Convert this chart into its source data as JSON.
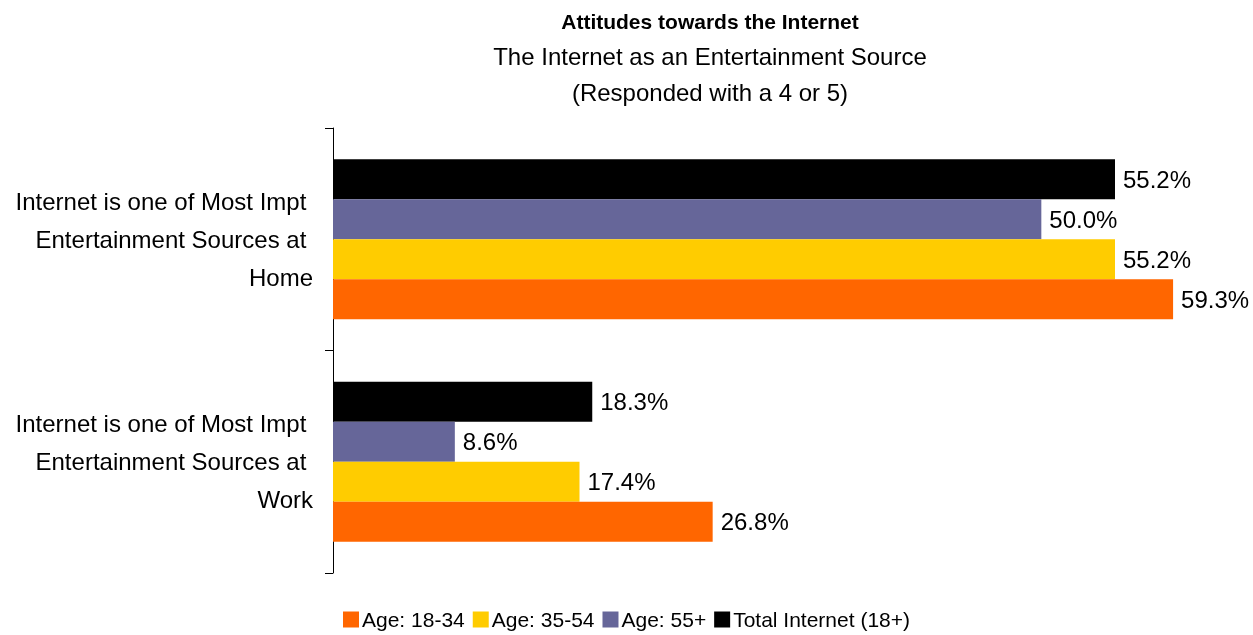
{
  "chart_data": {
    "type": "bar",
    "orientation": "horizontal",
    "title": "Attitudes towards the Internet",
    "subtitle": "The Internet as an Entertainment Source\n(Responded with a 4 or 5)",
    "categories": [
      "Internet is one of Most Impt Entertainment Sources at Home",
      "Internet is one of Most Impt Entertainment Sources at Work"
    ],
    "series": [
      {
        "name": "Age: 18-34",
        "color": "#ff6600",
        "values": [
          59.3,
          26.8
        ],
        "value_labels": [
          "59.3%",
          "26.8%"
        ]
      },
      {
        "name": "Age: 35-54",
        "color": "#ffcc00",
        "values": [
          55.2,
          17.4
        ],
        "value_labels": [
          "55.2%",
          "17.4%"
        ]
      },
      {
        "name": "Age: 55+",
        "color": "#666699",
        "values": [
          50.0,
          8.6
        ],
        "value_labels": [
          "50.0%",
          "8.6%"
        ]
      },
      {
        "name": "Total Internet (18+)",
        "color": "#000000",
        "values": [
          55.2,
          18.3
        ],
        "value_labels": [
          "55.2%",
          "18.3%"
        ]
      }
    ],
    "legend": "bottom"
  }
}
